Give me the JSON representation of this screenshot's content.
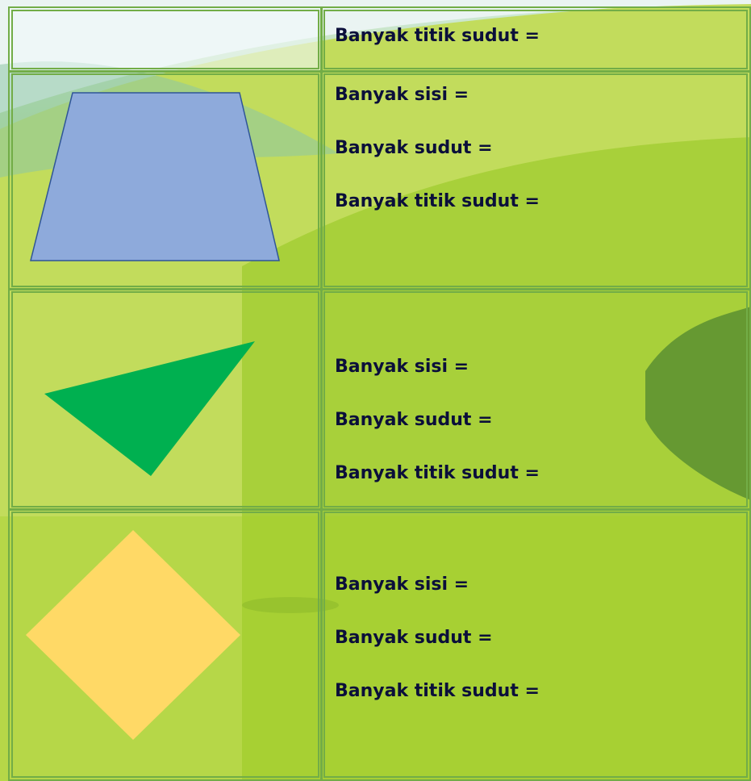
{
  "table": {
    "rows": [
      {
        "lines": [
          "Banyak titik sudut ="
        ]
      },
      {
        "lines": [
          "Banyak sisi =",
          "Banyak sudut =",
          "Banyak titik sudut ="
        ]
      },
      {
        "lines": [
          "Banyak sisi =",
          "Banyak sudut =",
          "Banyak titik sudut ="
        ]
      },
      {
        "lines": [
          "Banyak sisi =",
          "Banyak sudut =",
          "Banyak titik sudut ="
        ]
      }
    ]
  }
}
